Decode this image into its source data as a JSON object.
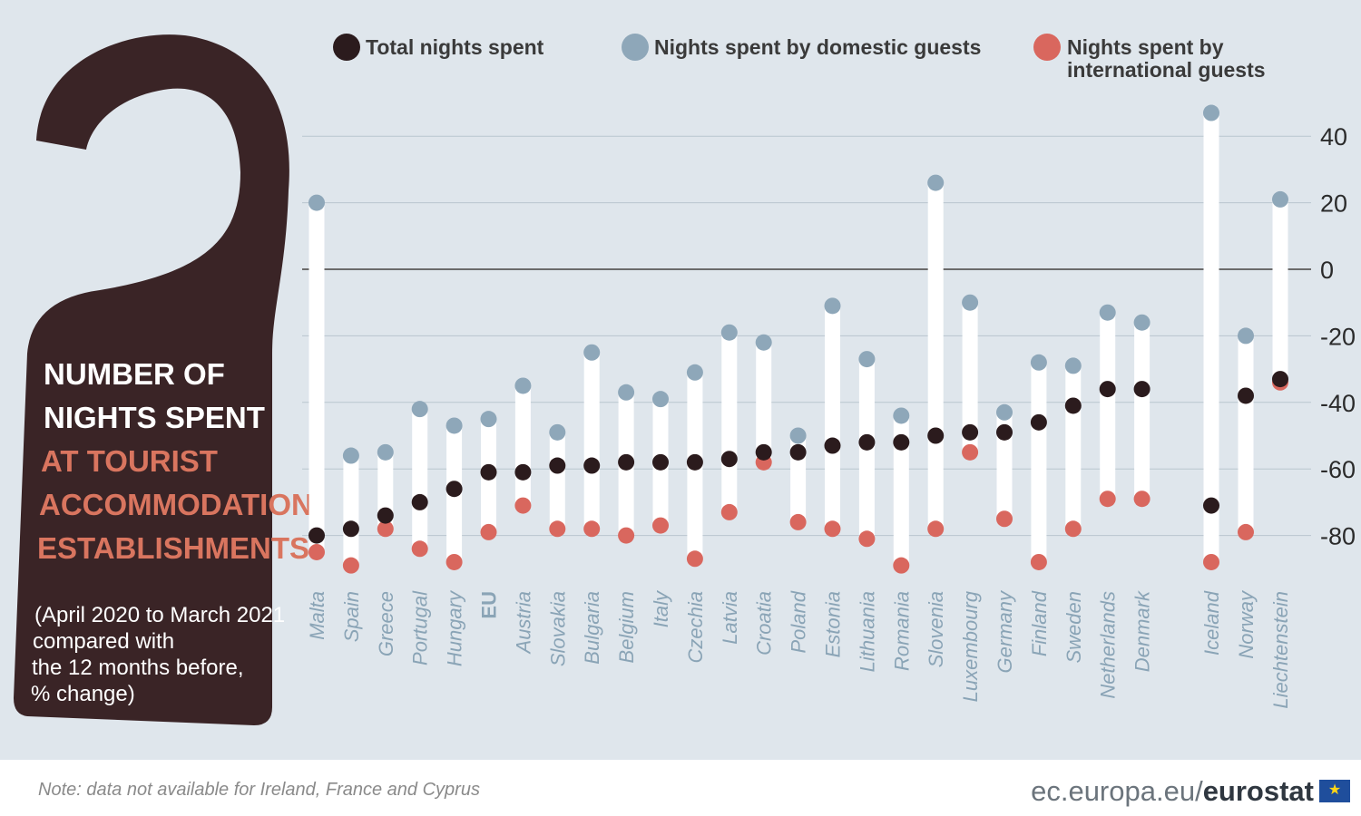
{
  "title": {
    "line1": "NUMBER OF",
    "line2": "NIGHTS SPENT",
    "line3": "AT TOURIST",
    "line4": "ACCOMMODATION",
    "line5": "ESTABLISHMENTS"
  },
  "subtitle": {
    "line1": "(April 2020 to March 2021",
    "line2": "compared with",
    "line3": "the 12 months before,",
    "line4": "% change)"
  },
  "legend": {
    "total": "Total nights spent",
    "domestic": "Nights spent by domestic guests",
    "international_line1": "Nights spent by",
    "international_line2": "international guests"
  },
  "footnote": "Note: data not available for Ireland, France and Cyprus",
  "brand": {
    "site": "ec.europa.eu/",
    "name": "eurostat"
  },
  "icons": {
    "eu_flag": "eu-flag-icon"
  },
  "colors": {
    "total": "#2b1b1d",
    "domestic": "#8ea7b9",
    "international": "#d9675e",
    "panel": "#dfe6ec",
    "hanger": "#3a2426"
  },
  "chart_data": {
    "type": "dot-range",
    "ylim": [
      -90,
      45
    ],
    "yticks": [
      40,
      20,
      0,
      -20,
      -40,
      -60,
      -80
    ],
    "grid": true,
    "legend_position": "top",
    "categories": [
      "Malta",
      "Spain",
      "Greece",
      "Portugal",
      "Hungary",
      "EU",
      "Austria",
      "Slovakia",
      "Bulgaria",
      "Belgium",
      "Italy",
      "Czechia",
      "Latvia",
      "Croatia",
      "Poland",
      "Estonia",
      "Lithuania",
      "Romania",
      "Slovenia",
      "Luxembourg",
      "Germany",
      "Finland",
      "Sweden",
      "Netherlands",
      "Denmark",
      "Iceland",
      "Norway",
      "Liechtenstein"
    ],
    "series": [
      {
        "name": "Total nights spent",
        "values": [
          -80,
          -78,
          -74,
          -70,
          -66,
          -61,
          -61,
          -59,
          -59,
          -58,
          -58,
          -58,
          -57,
          -55,
          -55,
          -53,
          -52,
          -52,
          -50,
          -49,
          -49,
          -46,
          -41,
          -36,
          -36,
          -71,
          -38,
          -33
        ]
      },
      {
        "name": "Nights spent by domestic guests",
        "values": [
          20,
          -56,
          -55,
          -42,
          -47,
          -45,
          -35,
          -49,
          -25,
          -37,
          -39,
          -31,
          -19,
          -22,
          -50,
          -11,
          -27,
          -44,
          26,
          -10,
          -43,
          -28,
          -29,
          -13,
          -16,
          47,
          -20,
          21
        ]
      },
      {
        "name": "Nights spent by international guests",
        "values": [
          -85,
          -89,
          -78,
          -84,
          -88,
          -79,
          -71,
          -78,
          -78,
          -80,
          -77,
          -87,
          -73,
          -58,
          -76,
          -78,
          -81,
          -89,
          -78,
          -55,
          -75,
          -88,
          -78,
          -69,
          -69,
          -88,
          -79,
          -34
        ]
      }
    ]
  }
}
